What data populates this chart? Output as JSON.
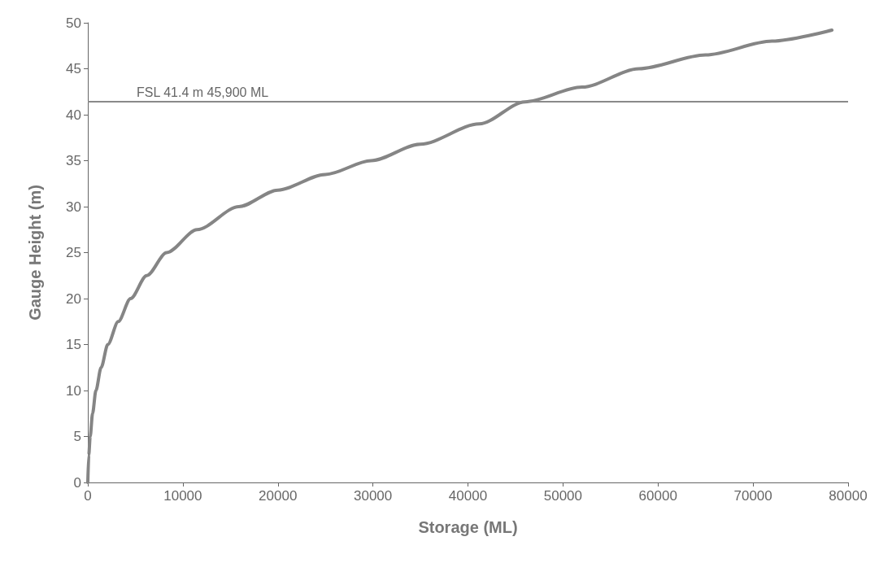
{
  "chart_data": {
    "type": "line",
    "xlabel": "Storage (ML)",
    "ylabel": "Gauge Height (m)",
    "series": [
      {
        "color": "#858585",
        "x": [
          0,
          100,
          250,
          500,
          850,
          1400,
          2100,
          3200,
          4500,
          6200,
          8300,
          11500,
          15900,
          20000,
          25000,
          29800,
          35000,
          41200,
          46000,
          52000,
          58000,
          65000,
          72000,
          78300
        ],
        "values": [
          0,
          3,
          5,
          7.5,
          10,
          12.5,
          15,
          17.5,
          20,
          22.5,
          25,
          27.5,
          30,
          31.8,
          33.5,
          35,
          36.8,
          39,
          41.4,
          43,
          45,
          46.5,
          48,
          49.2
        ]
      }
    ],
    "xlim": [
      0,
      80000
    ],
    "xticks": [
      0,
      10000,
      20000,
      30000,
      40000,
      50000,
      60000,
      70000,
      80000
    ],
    "ylim": [
      0,
      50
    ],
    "yticks": [
      0,
      5,
      10,
      15,
      20,
      25,
      30,
      35,
      40,
      45,
      50
    ],
    "ref_lines": [
      {
        "axis": "y",
        "value": 41.4,
        "label": "FSL 41.4 m 45,900 ML",
        "color": "#8a8a8a"
      }
    ],
    "grid": false,
    "marker": "none",
    "line_style": "solid"
  }
}
